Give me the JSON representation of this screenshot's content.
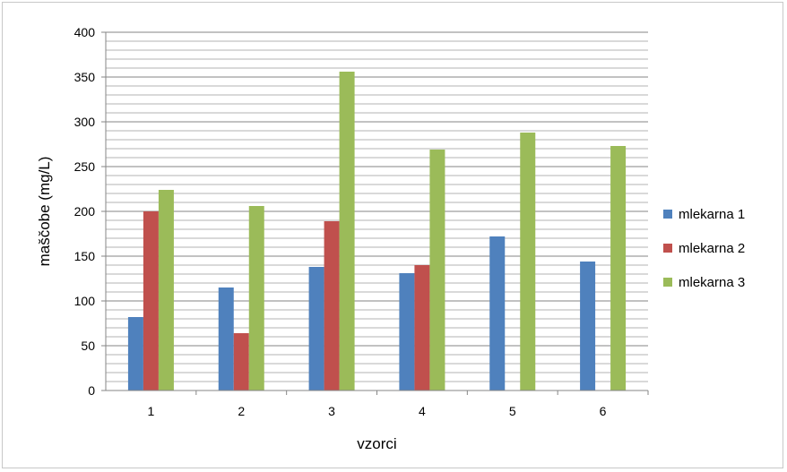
{
  "chart_data": {
    "type": "bar",
    "title": "",
    "xlabel": "vzorci",
    "ylabel": "maščobe (mg/L)",
    "categories": [
      "1",
      "2",
      "3",
      "4",
      "5",
      "6"
    ],
    "ylim": [
      0,
      400
    ],
    "y_major_step": 50,
    "y_minor_step": 10,
    "grid": true,
    "legend_position": "right",
    "series": [
      {
        "name": "mlekarna 1",
        "color": "#4f81bd",
        "values": [
          82,
          115,
          138,
          131,
          172,
          144
        ]
      },
      {
        "name": "mlekarna 2",
        "color": "#c0504d",
        "values": [
          200,
          64,
          189,
          140,
          null,
          null
        ]
      },
      {
        "name": "mlekarna 3",
        "color": "#9bbb59",
        "values": [
          224,
          206,
          356,
          269,
          288,
          273
        ]
      }
    ]
  }
}
